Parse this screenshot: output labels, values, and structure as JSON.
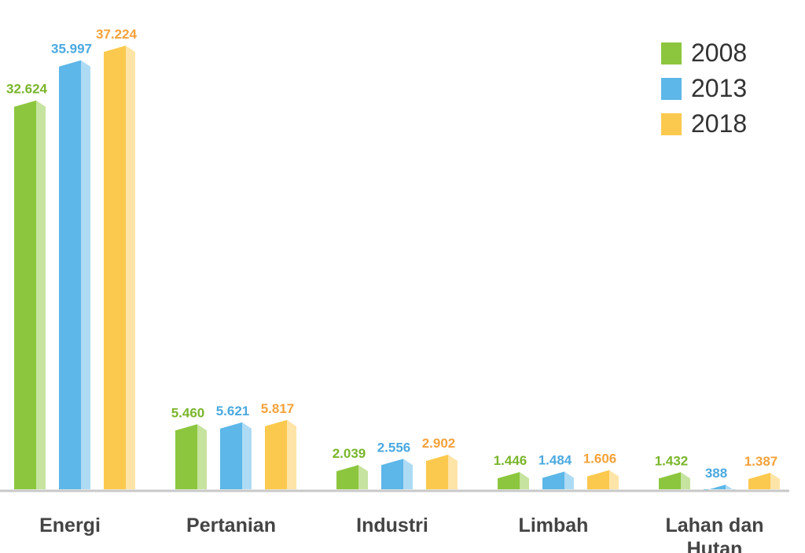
{
  "chart_data": {
    "type": "bar",
    "categories": [
      "Energi",
      "Pertanian",
      "Industri",
      "Limbah",
      "Lahan dan Hutan"
    ],
    "series": [
      {
        "name": "2008",
        "color": "#8cc63f",
        "values": [
          32624,
          5460,
          2039,
          1446,
          1432
        ],
        "labels": [
          "32.624",
          "5.460",
          "2.039",
          "1.446",
          "1.432"
        ],
        "label_color": "#7ab52b"
      },
      {
        "name": "2013",
        "color": "#5db7e8",
        "values": [
          35997,
          5621,
          2556,
          1484,
          388
        ],
        "labels": [
          "35.997",
          "5.621",
          "2.556",
          "1.484",
          "388"
        ],
        "label_color": "#4aa9e0"
      },
      {
        "name": "2018",
        "color": "#fcc94f",
        "values": [
          37224,
          5817,
          2902,
          1606,
          1387
        ],
        "labels": [
          "37.224",
          "5.817",
          "2.902",
          "1.606",
          "1.387"
        ],
        "label_color": "#f5a23a"
      }
    ],
    "legend_position": "top-right",
    "ylim": [
      0,
      37224
    ],
    "grid": false
  }
}
